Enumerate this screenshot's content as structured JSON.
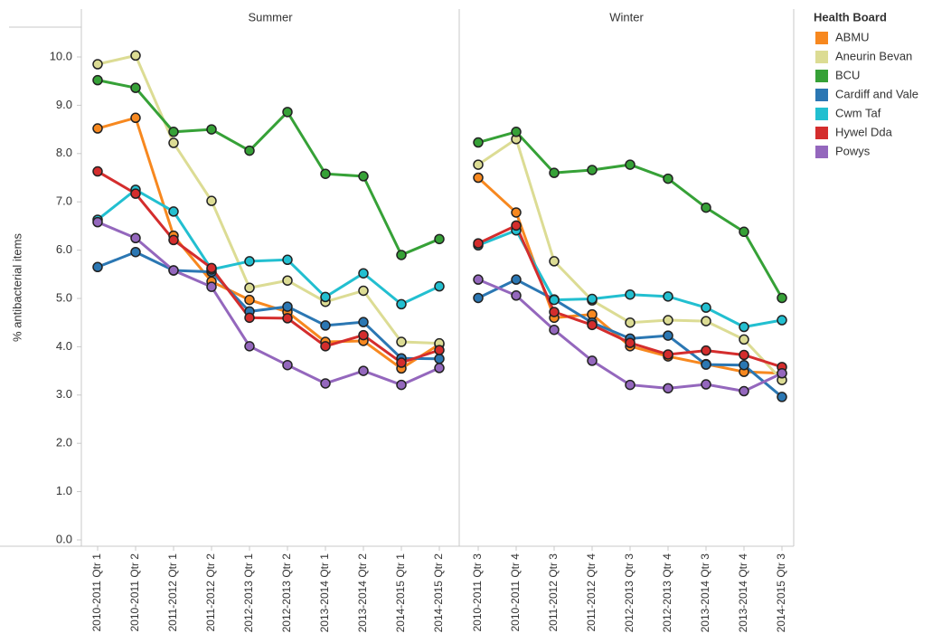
{
  "chart_data": {
    "type": "line",
    "y_label": "% antibacterial items",
    "legend_title": "Health Board",
    "ylim": [
      0,
      10
    ],
    "grid": false,
    "yticks": [
      {
        "value": 0,
        "label": "0.0"
      },
      {
        "value": 1,
        "label": "1.0"
      },
      {
        "value": 2,
        "label": "2.0"
      },
      {
        "value": 3,
        "label": "3.0"
      },
      {
        "value": 4,
        "label": "4.0"
      },
      {
        "value": 5,
        "label": "5.0"
      },
      {
        "value": 6,
        "label": "6.0"
      },
      {
        "value": 7,
        "label": "7.0"
      },
      {
        "value": 8,
        "label": "8.0"
      },
      {
        "value": 9,
        "label": "9.0"
      },
      {
        "value": 10,
        "label": "10.0"
      }
    ],
    "series": [
      {
        "name": "ABMU",
        "color": "#f7881f"
      },
      {
        "name": "Aneurin Bevan",
        "color": "#dcdc94"
      },
      {
        "name": "BCU",
        "color": "#36a137"
      },
      {
        "name": "Cardiff and Vale",
        "color": "#2b77b3"
      },
      {
        "name": "Cwm Taf",
        "color": "#22bfd0"
      },
      {
        "name": "Hywel Dda",
        "color": "#d42d2d"
      },
      {
        "name": "Powys",
        "color": "#9467bd"
      }
    ],
    "panels": [
      {
        "title": "Summer",
        "categories": [
          "2010-2011 Qtr 1",
          "2010-2011 Qtr 2",
          "2011-2012 Qtr 1",
          "2011-2012 Qtr 2",
          "2012-2013 Qtr 1",
          "2012-2013 Qtr 2",
          "2013-2014 Qtr 1",
          "2013-2014 Qtr 2",
          "2014-2015 Qtr 1",
          "2014-2015 Qtr 2"
        ],
        "values": [
          [
            8.52,
            8.74,
            6.3,
            5.35,
            4.97,
            4.72,
            4.1,
            4.12,
            3.55,
            4.05
          ],
          [
            9.85,
            10.03,
            8.22,
            7.02,
            5.22,
            5.37,
            4.93,
            5.16,
            4.1,
            4.07
          ],
          [
            9.52,
            9.36,
            8.45,
            8.5,
            8.06,
            8.86,
            7.58,
            7.53,
            5.9,
            6.23
          ],
          [
            5.65,
            5.96,
            5.58,
            5.55,
            4.73,
            4.83,
            4.44,
            4.51,
            3.76,
            3.75
          ],
          [
            6.63,
            7.25,
            6.8,
            5.6,
            5.77,
            5.8,
            5.03,
            5.52,
            4.88,
            5.25
          ],
          [
            7.63,
            7.17,
            6.21,
            5.63,
            4.6,
            4.59,
            4.01,
            4.24,
            3.67,
            3.93
          ],
          [
            6.58,
            6.25,
            5.58,
            5.24,
            4.01,
            3.62,
            3.24,
            3.5,
            3.21,
            3.56
          ]
        ]
      },
      {
        "title": "Winter",
        "categories": [
          "2010-2011 Qtr 3",
          "2010-2011 Qtr 4",
          "2011-2012 Qtr 3",
          "2011-2012 Qtr 4",
          "2012-2013 Qtr 3",
          "2012-2013 Qtr 4",
          "2013-2014 Qtr 3",
          "2013-2014 Qtr 4",
          "2014-2015 Qtr 3"
        ],
        "values": [
          [
            7.5,
            6.78,
            4.6,
            4.67,
            4.01,
            3.8,
            3.64,
            3.48,
            3.45
          ],
          [
            7.77,
            8.3,
            5.77,
            4.96,
            4.5,
            4.55,
            4.53,
            4.15,
            3.31
          ],
          [
            8.23,
            8.45,
            7.6,
            7.66,
            7.77,
            7.48,
            6.88,
            6.38,
            5.01
          ],
          [
            5.01,
            5.39,
            4.98,
            4.5,
            4.17,
            4.23,
            3.63,
            3.62,
            2.96
          ],
          [
            6.1,
            6.41,
            4.97,
            4.99,
            5.08,
            5.04,
            4.81,
            4.41,
            4.55
          ],
          [
            6.14,
            6.51,
            4.72,
            4.45,
            4.08,
            3.84,
            3.92,
            3.83,
            3.58
          ],
          [
            5.39,
            5.06,
            4.35,
            3.71,
            3.21,
            3.14,
            3.22,
            3.08,
            3.45
          ]
        ]
      }
    ]
  }
}
